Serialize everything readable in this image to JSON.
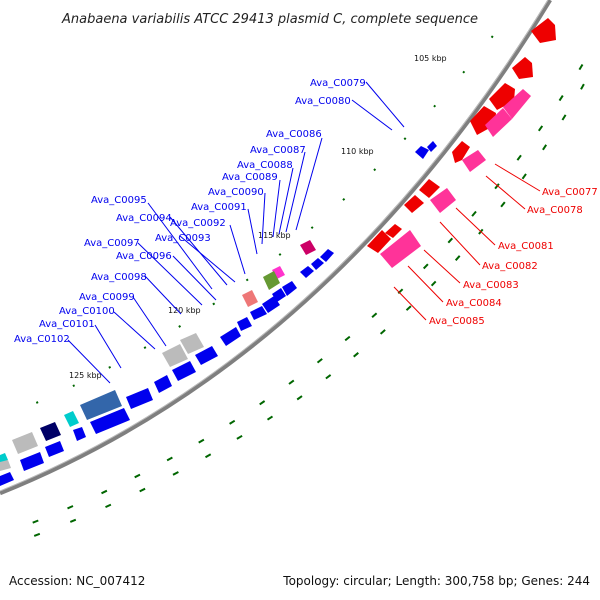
{
  "title": "Anabaena variabilis ATCC 29413 plasmid C, complete sequence",
  "footer": {
    "accession": "Accession: NC_007412",
    "summary": "Topology: circular; Length: 300,758 bp; Genes: 244"
  },
  "colors": {
    "backbone": "#7f7f7f",
    "minus_strand_label": "#0000cc",
    "plus_strand_label": "#ee0000",
    "tick": "#006600"
  },
  "ticks": [
    {
      "label": "105 kbp"
    },
    {
      "label": "110 kbp"
    },
    {
      "label": "115 kbp"
    },
    {
      "label": "120 kbp"
    },
    {
      "label": "125 kbp"
    }
  ],
  "genes_outer": [
    {
      "id": "Ava_C0077"
    },
    {
      "id": "Ava_C0078"
    },
    {
      "id": "Ava_C0081"
    },
    {
      "id": "Ava_C0082"
    },
    {
      "id": "Ava_C0083"
    },
    {
      "id": "Ava_C0084"
    },
    {
      "id": "Ava_C0085"
    }
  ],
  "genes_inner": [
    {
      "id": "Ava_C0079"
    },
    {
      "id": "Ava_C0080"
    },
    {
      "id": "Ava_C0086"
    },
    {
      "id": "Ava_C0087"
    },
    {
      "id": "Ava_C0088"
    },
    {
      "id": "Ava_C0089"
    },
    {
      "id": "Ava_C0090"
    },
    {
      "id": "Ava_C0091"
    },
    {
      "id": "Ava_C0092"
    },
    {
      "id": "Ava_C0093"
    },
    {
      "id": "Ava_C0094"
    },
    {
      "id": "Ava_C0095"
    },
    {
      "id": "Ava_C0096"
    },
    {
      "id": "Ava_C0097"
    },
    {
      "id": "Ava_C0098"
    },
    {
      "id": "Ava_C0099"
    },
    {
      "id": "Ava_C0100"
    },
    {
      "id": "Ava_C0101"
    },
    {
      "id": "Ava_C0102"
    }
  ]
}
